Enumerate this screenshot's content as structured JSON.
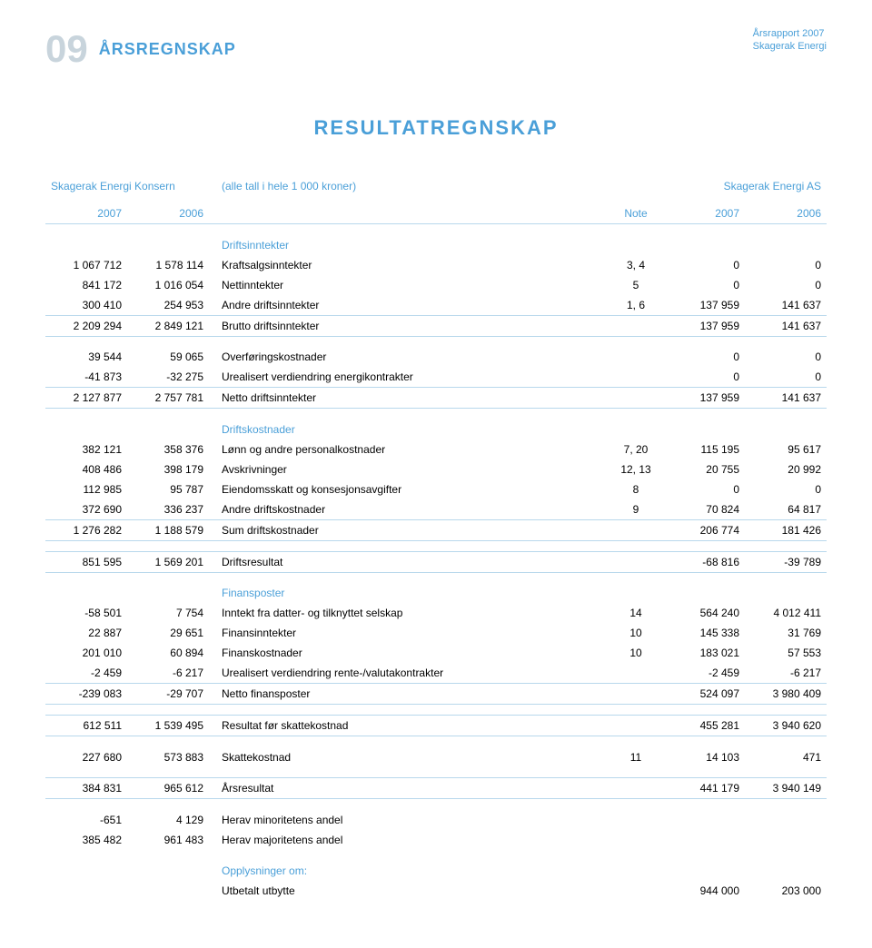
{
  "header": {
    "page_number": "09",
    "section_title": "ÅRSREGNSKAP",
    "report_title": "Årsrapport 2007",
    "company": "Skagerak Energi"
  },
  "main_title": "RESULTATREGNSKAP",
  "table": {
    "entity_left": "Skagerak Energi Konsern",
    "subtitle": "(alle tall i hele 1 000 kroner)",
    "entity_right": "Skagerak Energi AS",
    "year_left_1": "2007",
    "year_left_2": "2006",
    "note_label": "Note",
    "year_right_1": "2007",
    "year_right_2": "2006",
    "sections": [
      {
        "heading": "Driftsinntekter",
        "rows": [
          [
            "1 067 712",
            "1 578 114",
            "Kraftsalgsinntekter",
            "3, 4",
            "0",
            "0"
          ],
          [
            "841 172",
            "1 016 054",
            "Nettinntekter",
            "5",
            "0",
            "0"
          ],
          [
            "300 410",
            "254 953",
            "Andre driftsinntekter",
            "1, 6",
            "137 959",
            "141 637"
          ]
        ],
        "total": [
          "2 209 294",
          "2 849 121",
          "Brutto driftsinntekter",
          "",
          "137 959",
          "141 637"
        ]
      },
      {
        "heading": "",
        "rows": [
          [
            "39 544",
            "59 065",
            "Overføringskostnader",
            "",
            "0",
            "0"
          ],
          [
            "-41 873",
            "-32 275",
            "Urealisert verdiendring energikontrakter",
            "",
            "0",
            "0"
          ]
        ],
        "total": [
          "2 127 877",
          "2 757 781",
          "Netto driftsinntekter",
          "",
          "137 959",
          "141 637"
        ]
      },
      {
        "heading": "Driftskostnader",
        "rows": [
          [
            "382 121",
            "358 376",
            "Lønn og andre personalkostnader",
            "7, 20",
            "115 195",
            "95 617"
          ],
          [
            "408 486",
            "398 179",
            "Avskrivninger",
            "12, 13",
            "20 755",
            "20 992"
          ],
          [
            "112 985",
            "95 787",
            "Eiendomsskatt og konsesjonsavgifter",
            "8",
            "0",
            "0"
          ],
          [
            "372 690",
            "336 237",
            "Andre driftskostnader",
            "9",
            "70 824",
            "64 817"
          ]
        ],
        "total": [
          "1 276 282",
          "1 188 579",
          "Sum driftskostnader",
          "",
          "206 774",
          "181 426"
        ]
      },
      {
        "heading": "",
        "rows": [],
        "total": [
          "851 595",
          "1 569 201",
          "Driftsresultat",
          "",
          "-68 816",
          "-39 789"
        ]
      },
      {
        "heading": "Finansposter",
        "rows": [
          [
            "-58 501",
            "7 754",
            "Inntekt fra datter- og tilknyttet selskap",
            "14",
            "564 240",
            "4 012 411"
          ],
          [
            "22 887",
            "29 651",
            "Finansinntekter",
            "10",
            "145 338",
            "31 769"
          ],
          [
            "201 010",
            "60 894",
            "Finanskostnader",
            "10",
            "183 021",
            "57 553"
          ],
          [
            "-2 459",
            "-6 217",
            "Urealisert verdiendring rente-/valutakontrakter",
            "",
            "-2 459",
            "-6 217"
          ]
        ],
        "total": [
          "-239 083",
          "-29 707",
          "Netto finansposter",
          "",
          "524 097",
          "3 980 409"
        ]
      },
      {
        "heading": "",
        "rows": [],
        "total": [
          "612 511",
          "1 539 495",
          "Resultat før skattekostnad",
          "",
          "455 281",
          "3 940 620"
        ]
      },
      {
        "heading": "",
        "rows": [
          [
            "227 680",
            "573 883",
            "Skattekostnad",
            "11",
            "14 103",
            "471"
          ]
        ],
        "total": null
      },
      {
        "heading": "",
        "rows": [],
        "total": [
          "384 831",
          "965 612",
          "Årsresultat",
          "",
          "441 179",
          "3 940 149"
        ]
      },
      {
        "heading": "",
        "rows": [
          [
            "-651",
            "4 129",
            "Herav minoritetens andel",
            "",
            "",
            ""
          ],
          [
            "385 482",
            "961 483",
            "Herav majoritetens andel",
            "",
            "",
            ""
          ]
        ],
        "total": null
      },
      {
        "heading": "Opplysninger om:",
        "rows": [
          [
            "",
            "",
            "Utbetalt utbytte",
            "",
            "944 000",
            "203 000"
          ]
        ],
        "total": null
      }
    ]
  },
  "colors": {
    "accent": "#4a9fd8",
    "page_number": "#c8d4dc",
    "line": "#b8d8ec",
    "text": "#000000"
  }
}
